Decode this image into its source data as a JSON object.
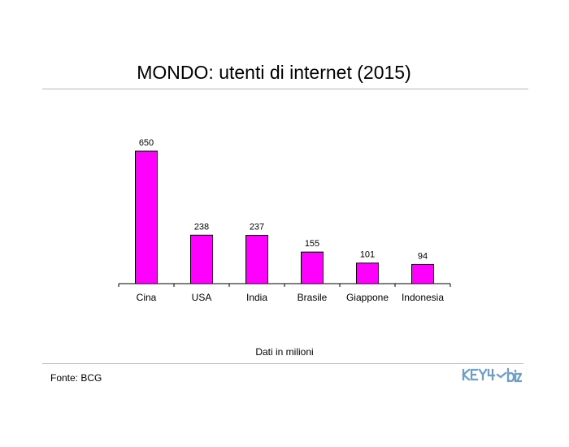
{
  "page": {
    "title": "MONDO: utenti di internet (2015)",
    "note": "Dati in milioni",
    "source": "Fonte: BCG",
    "logo_text": "KEY4biz"
  },
  "colors": {
    "bar": "#ff00ff",
    "bar_border": "#000000",
    "axis": "#000000",
    "rule": "#b8b8b8",
    "logo": "#6f9ec6"
  },
  "chart_data": {
    "type": "bar",
    "title": "",
    "xlabel": "",
    "ylabel": "",
    "categories": [
      "Cina",
      "USA",
      "India",
      "Brasile",
      "Giappone",
      "Indonesia"
    ],
    "values": [
      650,
      238,
      237,
      155,
      101,
      94
    ],
    "data_labels": [
      "650",
      "238",
      "237",
      "155",
      "101",
      "94"
    ],
    "ylim": [
      0,
      650
    ],
    "grid": false,
    "legend": "none"
  }
}
